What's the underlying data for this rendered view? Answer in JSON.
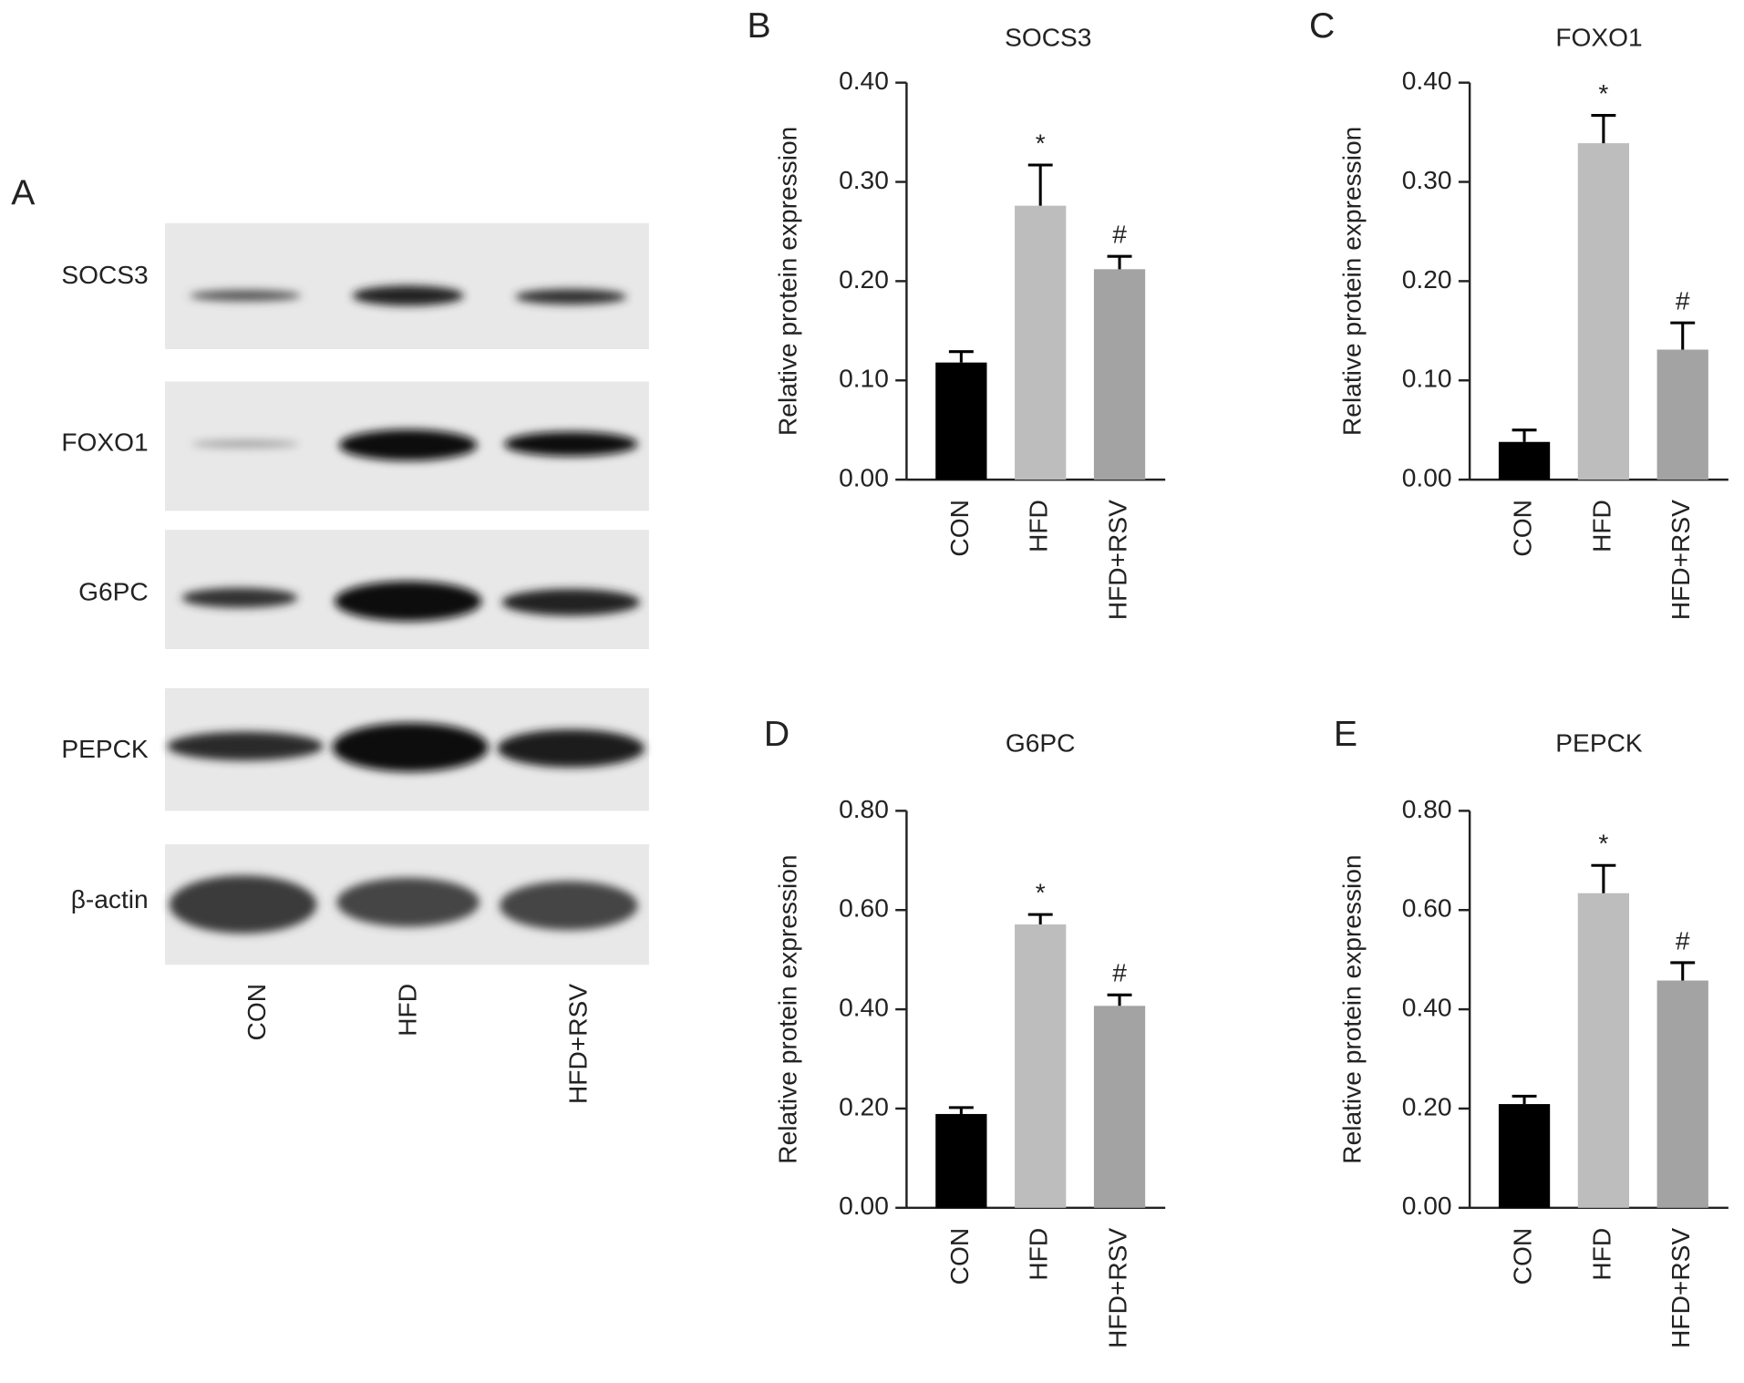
{
  "blot": {
    "panel": "A",
    "proteins": [
      "SOCS3",
      "FOXO1",
      "G6PC",
      "PEPCK",
      "β-actin"
    ],
    "lanes": [
      "CON",
      "HFD",
      "HFD+RSV"
    ]
  },
  "chart_data": [
    {
      "type": "bar",
      "panel": "B",
      "title": "SOCS3",
      "y_label": "Relative protein expression",
      "categories": [
        "CON",
        "HFD",
        "HFD+RSV"
      ],
      "values": [
        0.118,
        0.276,
        0.212
      ],
      "errors": [
        0.011,
        0.041,
        0.013
      ],
      "annotations": [
        null,
        "*",
        "#"
      ],
      "colors": [
        "#000000",
        "#bdbdbd",
        "#a3a3a3"
      ],
      "ylim": [
        0,
        0.4
      ],
      "yticks": [
        {
          "value": 0,
          "label": "0.00"
        },
        {
          "value": 0.1,
          "label": "0.10"
        },
        {
          "value": 0.2,
          "label": "0.20"
        },
        {
          "value": 0.3,
          "label": "0.30"
        },
        {
          "value": 0.4,
          "label": "0.40"
        }
      ]
    },
    {
      "type": "bar",
      "panel": "C",
      "title": "FOXO1",
      "y_label": "Relative protein expression",
      "categories": [
        "CON",
        "HFD",
        "HFD+RSV"
      ],
      "values": [
        0.038,
        0.339,
        0.131
      ],
      "errors": [
        0.012,
        0.028,
        0.027
      ],
      "annotations": [
        null,
        "*",
        "#"
      ],
      "colors": [
        "#000000",
        "#bdbdbd",
        "#a3a3a3"
      ],
      "ylim": [
        0,
        0.4
      ],
      "yticks": [
        {
          "value": 0,
          "label": "0.00"
        },
        {
          "value": 0.1,
          "label": "0.10"
        },
        {
          "value": 0.2,
          "label": "0.20"
        },
        {
          "value": 0.3,
          "label": "0.30"
        },
        {
          "value": 0.4,
          "label": "0.40"
        }
      ]
    },
    {
      "type": "bar",
      "panel": "D",
      "title": "G6PC",
      "y_label": "Relative protein expression",
      "categories": [
        "CON",
        "HFD",
        "HFD+RSV"
      ],
      "values": [
        0.189,
        0.571,
        0.407
      ],
      "errors": [
        0.013,
        0.02,
        0.022
      ],
      "annotations": [
        null,
        "*",
        "#"
      ],
      "colors": [
        "#000000",
        "#bdbdbd",
        "#a3a3a3"
      ],
      "ylim": [
        0,
        0.8
      ],
      "yticks": [
        {
          "value": 0,
          "label": "0.00"
        },
        {
          "value": 0.2,
          "label": "0.20"
        },
        {
          "value": 0.4,
          "label": "0.40"
        },
        {
          "value": 0.6,
          "label": "0.60"
        },
        {
          "value": 0.8,
          "label": "0.80"
        }
      ]
    },
    {
      "type": "bar",
      "panel": "E",
      "title": "PEPCK",
      "y_label": "Relative protein expression",
      "categories": [
        "CON",
        "HFD",
        "HFD+RSV"
      ],
      "values": [
        0.209,
        0.634,
        0.458
      ],
      "errors": [
        0.016,
        0.056,
        0.036
      ],
      "annotations": [
        null,
        "*",
        "#"
      ],
      "colors": [
        "#000000",
        "#bdbdbd",
        "#a3a3a3"
      ],
      "ylim": [
        0,
        0.8
      ],
      "yticks": [
        {
          "value": 0,
          "label": "0.00"
        },
        {
          "value": 0.2,
          "label": "0.20"
        },
        {
          "value": 0.4,
          "label": "0.40"
        },
        {
          "value": 0.6,
          "label": "0.60"
        },
        {
          "value": 0.8,
          "label": "0.80"
        }
      ]
    }
  ]
}
